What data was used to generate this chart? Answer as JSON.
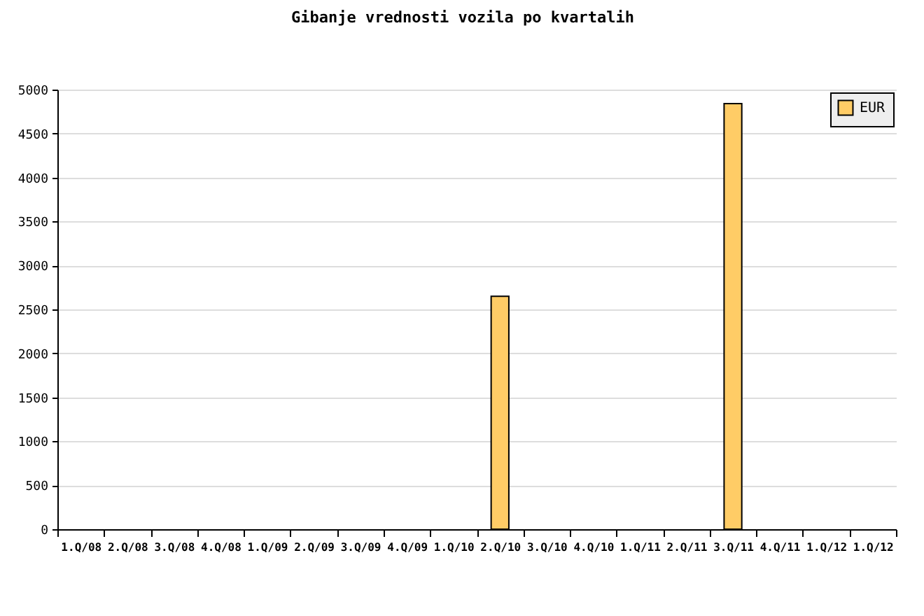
{
  "chart_data": {
    "type": "bar",
    "title": "Gibanje vrednosti vozila po kvartalih",
    "categories": [
      "1.Q/08",
      "2.Q/08",
      "3.Q/08",
      "4.Q/08",
      "1.Q/09",
      "2.Q/09",
      "3.Q/09",
      "4.Q/09",
      "1.Q/10",
      "2.Q/10",
      "3.Q/10",
      "4.Q/10",
      "1.Q/11",
      "2.Q/11",
      "3.Q/11",
      "4.Q/11",
      "1.Q/12",
      "1.Q/12"
    ],
    "series": [
      {
        "name": "EUR",
        "color": "#ffcc66",
        "values": [
          null,
          null,
          null,
          null,
          null,
          null,
          null,
          null,
          null,
          2650,
          null,
          null,
          null,
          null,
          4840,
          null,
          null,
          null
        ]
      }
    ],
    "ylim": [
      0,
      5000
    ],
    "yticks": [
      0,
      500,
      1000,
      1500,
      2000,
      2500,
      3000,
      3500,
      4000,
      4500,
      5000
    ],
    "grid": "y",
    "legend": "top right"
  }
}
